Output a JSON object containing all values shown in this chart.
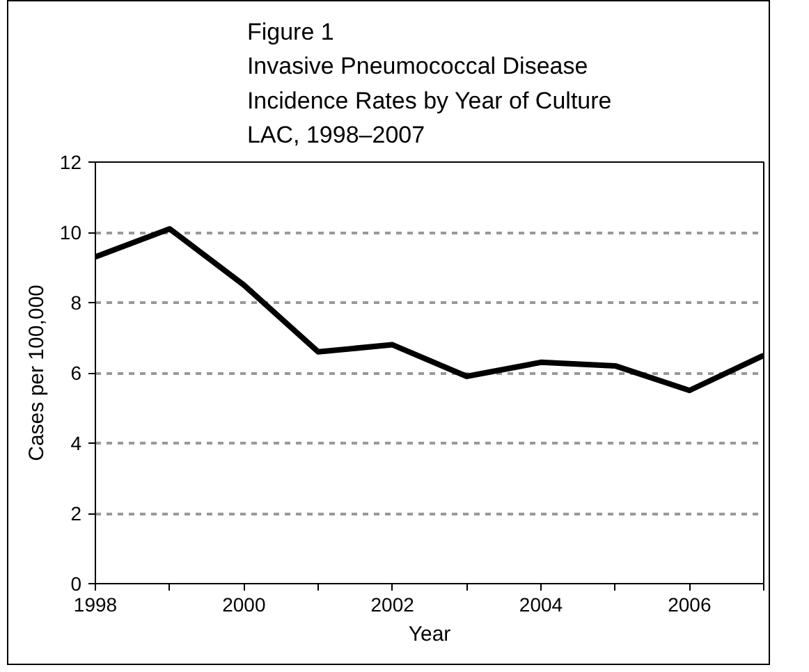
{
  "chart_data": {
    "type": "line",
    "title": "Figure 1\nInvasive Pneumococcal Disease\nIncidence Rates by Year of Culture\nLAC, 1998–2007",
    "xlabel": "Year",
    "ylabel": "Cases per 100,000",
    "x": [
      1998,
      1999,
      2000,
      2001,
      2002,
      2003,
      2004,
      2005,
      2006,
      2007
    ],
    "series": [
      {
        "color": "#000000",
        "values": [
          9.3,
          10.1,
          8.5,
          6.6,
          6.8,
          5.9,
          6.3,
          6.2,
          5.5,
          6.5
        ]
      }
    ],
    "xlim": [
      1998,
      2007
    ],
    "xticks": [
      1998,
      {
        "value": 1999,
        "label": null
      },
      2000,
      {
        "value": 2001,
        "label": null
      },
      2002,
      {
        "value": 2003,
        "label": null
      },
      2004,
      {
        "value": 2005,
        "label": null
      },
      2006,
      {
        "value": 2007,
        "label": null
      }
    ],
    "ylim": [
      0,
      12
    ],
    "yticks": [
      0,
      2,
      4,
      6,
      8,
      10,
      12
    ],
    "grid": "y",
    "marker": "none",
    "line_style": "solid"
  }
}
